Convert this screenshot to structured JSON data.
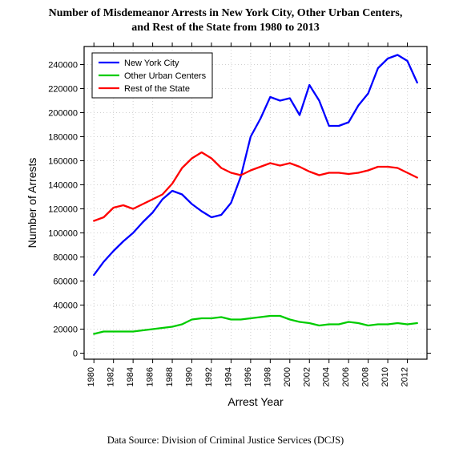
{
  "title_line1": "Number of Misdemeanor Arrests in New York City, Other Urban Centers,",
  "title_line2": "and Rest of the State from 1980 to 2013",
  "source_text": "Data Source: Division of Criminal Justice Services (DCJS)",
  "chart": {
    "type": "line",
    "background_color": "#ffffff",
    "plot_border_color": "#000000",
    "grid_color": "#d0d0d0",
    "ylabel": "Number of Arrests",
    "xlabel": "Arrest Year",
    "label_fontsize": 14,
    "tick_fontsize": 11,
    "xlim": [
      1979,
      2014
    ],
    "ylim": [
      -5000,
      255000
    ],
    "yticks": [
      0,
      20000,
      40000,
      60000,
      80000,
      100000,
      120000,
      140000,
      160000,
      180000,
      200000,
      220000,
      240000
    ],
    "xticks": [
      1980,
      1982,
      1984,
      1986,
      1988,
      1990,
      1992,
      1994,
      1996,
      1998,
      2000,
      2002,
      2004,
      2006,
      2008,
      2010,
      2012
    ],
    "line_width": 2.3,
    "legend": {
      "position": "upper-left",
      "fontsize": 11,
      "items": [
        {
          "label": "New York City",
          "color": "#0000ff"
        },
        {
          "label": "Other Urban Centers",
          "color": "#00cc00"
        },
        {
          "label": "Rest of the State",
          "color": "#ff0000"
        }
      ]
    },
    "series": [
      {
        "name": "New York City",
        "color": "#0000ff",
        "x": [
          1980,
          1981,
          1982,
          1983,
          1984,
          1985,
          1986,
          1987,
          1988,
          1989,
          1990,
          1991,
          1992,
          1993,
          1994,
          1995,
          1996,
          1997,
          1998,
          1999,
          2000,
          2001,
          2002,
          2003,
          2004,
          2005,
          2006,
          2007,
          2008,
          2009,
          2010,
          2011,
          2012,
          2013
        ],
        "y": [
          65000,
          76000,
          85000,
          93000,
          100000,
          109000,
          117000,
          128000,
          135000,
          132000,
          124000,
          118000,
          113000,
          115000,
          125000,
          147000,
          180000,
          195000,
          213000,
          210000,
          212000,
          198000,
          223000,
          210000,
          189000,
          189000,
          192000,
          206000,
          216000,
          237000,
          245000,
          248000,
          243000,
          225000
        ]
      },
      {
        "name": "Other Urban Centers",
        "color": "#00cc00",
        "x": [
          1980,
          1981,
          1982,
          1983,
          1984,
          1985,
          1986,
          1987,
          1988,
          1989,
          1990,
          1991,
          1992,
          1993,
          1994,
          1995,
          1996,
          1997,
          1998,
          1999,
          2000,
          2001,
          2002,
          2003,
          2004,
          2005,
          2006,
          2007,
          2008,
          2009,
          2010,
          2011,
          2012,
          2013
        ],
        "y": [
          16000,
          18000,
          18000,
          18000,
          18000,
          19000,
          20000,
          21000,
          22000,
          24000,
          28000,
          29000,
          29000,
          30000,
          28000,
          28000,
          29000,
          30000,
          31000,
          31000,
          28000,
          26000,
          25000,
          23000,
          24000,
          24000,
          26000,
          25000,
          23000,
          24000,
          24000,
          25000,
          24000,
          25000
        ]
      },
      {
        "name": "Rest of the State",
        "color": "#ff0000",
        "x": [
          1980,
          1981,
          1982,
          1983,
          1984,
          1985,
          1986,
          1987,
          1988,
          1989,
          1990,
          1991,
          1992,
          1993,
          1994,
          1995,
          1996,
          1997,
          1998,
          1999,
          2000,
          2001,
          2002,
          2003,
          2004,
          2005,
          2006,
          2007,
          2008,
          2009,
          2010,
          2011,
          2012,
          2013
        ],
        "y": [
          110000,
          113000,
          121000,
          123000,
          120000,
          124000,
          128000,
          132000,
          141000,
          154000,
          162000,
          167000,
          162000,
          154000,
          150000,
          148000,
          152000,
          155000,
          158000,
          156000,
          158000,
          155000,
          151000,
          148000,
          150000,
          150000,
          149000,
          150000,
          152000,
          155000,
          155000,
          154000,
          150000,
          146000
        ]
      }
    ]
  }
}
